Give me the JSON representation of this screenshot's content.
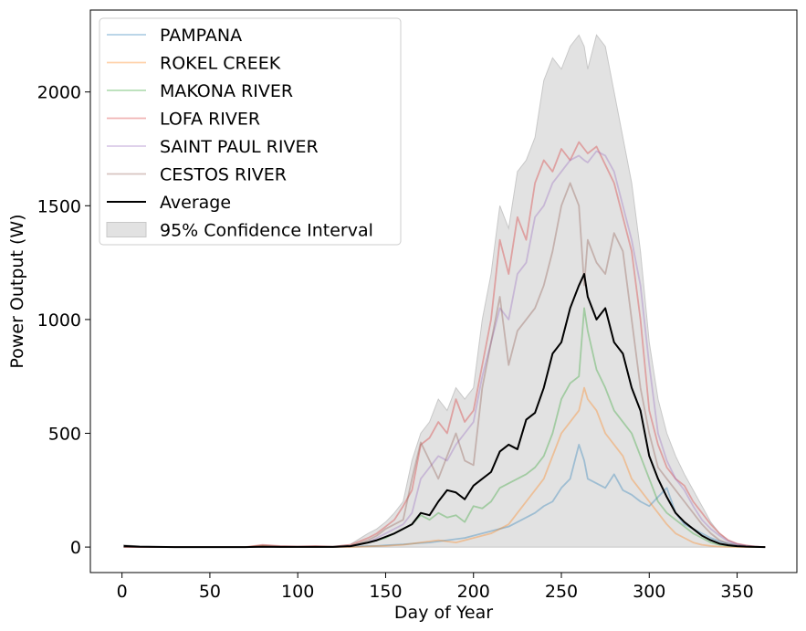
{
  "chart_data": {
    "type": "line",
    "title": "",
    "xlabel": "Day of Year",
    "ylabel": "Power Output (W)",
    "xlim": [
      -18,
      384
    ],
    "ylim": [
      -112,
      2360
    ],
    "xticks": [
      0,
      50,
      100,
      150,
      200,
      250,
      300,
      350
    ],
    "yticks": [
      0,
      500,
      1000,
      1500,
      2000
    ],
    "grid": false,
    "legend_position": "top-left",
    "x": [
      1,
      10,
      20,
      30,
      40,
      50,
      60,
      70,
      80,
      90,
      100,
      110,
      120,
      130,
      140,
      145,
      150,
      155,
      160,
      165,
      170,
      175,
      180,
      185,
      190,
      195,
      200,
      205,
      210,
      215,
      220,
      225,
      230,
      235,
      240,
      245,
      250,
      255,
      260,
      263,
      265,
      270,
      275,
      280,
      285,
      290,
      295,
      300,
      305,
      310,
      315,
      320,
      325,
      330,
      335,
      340,
      345,
      350,
      355,
      360,
      366
    ],
    "series": [
      {
        "name": "PAMPANA",
        "color": "#1f77b4",
        "opacity": 0.35,
        "values": [
          0,
          0,
          0,
          0,
          0,
          0,
          0,
          0,
          0,
          0,
          0,
          0,
          0,
          2,
          5,
          5,
          8,
          10,
          12,
          15,
          18,
          20,
          25,
          30,
          35,
          40,
          50,
          60,
          70,
          80,
          90,
          110,
          130,
          150,
          180,
          200,
          260,
          300,
          450,
          380,
          300,
          280,
          260,
          320,
          250,
          230,
          200,
          180,
          220,
          260,
          150,
          100,
          80,
          60,
          40,
          25,
          15,
          8,
          4,
          2,
          0
        ]
      },
      {
        "name": "ROKEL CREEK",
        "color": "#ff7f0e",
        "opacity": 0.35,
        "values": [
          0,
          0,
          0,
          0,
          0,
          0,
          0,
          0,
          5,
          0,
          0,
          0,
          0,
          0,
          3,
          5,
          5,
          8,
          10,
          15,
          20,
          25,
          30,
          25,
          20,
          30,
          40,
          50,
          60,
          80,
          100,
          150,
          200,
          250,
          300,
          400,
          500,
          550,
          600,
          700,
          650,
          600,
          500,
          450,
          400,
          300,
          250,
          200,
          150,
          100,
          60,
          40,
          20,
          10,
          5,
          2,
          1,
          0,
          0,
          0,
          0
        ]
      },
      {
        "name": "MAKONA RIVER",
        "color": "#2ca02c",
        "opacity": 0.35,
        "values": [
          0,
          0,
          0,
          0,
          0,
          0,
          0,
          0,
          0,
          0,
          0,
          0,
          0,
          5,
          20,
          30,
          40,
          60,
          80,
          100,
          140,
          120,
          150,
          130,
          140,
          110,
          180,
          170,
          200,
          260,
          280,
          300,
          320,
          350,
          400,
          500,
          650,
          720,
          750,
          1050,
          950,
          780,
          700,
          600,
          550,
          500,
          400,
          300,
          200,
          150,
          120,
          90,
          60,
          40,
          20,
          10,
          5,
          3,
          2,
          1,
          0
        ]
      },
      {
        "name": "LOFA RIVER",
        "color": "#d62728",
        "opacity": 0.35,
        "values": [
          0,
          0,
          0,
          0,
          0,
          0,
          0,
          0,
          10,
          5,
          3,
          5,
          2,
          10,
          40,
          60,
          90,
          120,
          180,
          250,
          450,
          480,
          550,
          500,
          650,
          550,
          600,
          800,
          1000,
          1350,
          1200,
          1450,
          1350,
          1600,
          1700,
          1650,
          1750,
          1700,
          1780,
          1750,
          1730,
          1760,
          1680,
          1600,
          1450,
          1300,
          1000,
          600,
          450,
          350,
          300,
          270,
          200,
          150,
          100,
          60,
          30,
          15,
          8,
          3,
          0
        ]
      },
      {
        "name": "SAINT PAUL RIVER",
        "color": "#9467bd",
        "opacity": 0.35,
        "values": [
          0,
          0,
          0,
          0,
          0,
          0,
          0,
          0,
          0,
          0,
          0,
          0,
          0,
          5,
          20,
          40,
          60,
          80,
          100,
          150,
          300,
          350,
          400,
          380,
          450,
          500,
          550,
          750,
          900,
          1050,
          1000,
          1200,
          1250,
          1450,
          1500,
          1600,
          1650,
          1700,
          1720,
          1700,
          1690,
          1740,
          1720,
          1650,
          1500,
          1350,
          1150,
          800,
          500,
          380,
          300,
          250,
          180,
          120,
          80,
          50,
          25,
          12,
          6,
          2,
          0
        ]
      },
      {
        "name": "CESTOS RIVER",
        "color": "#8c564b",
        "opacity": 0.35,
        "values": [
          0,
          0,
          0,
          0,
          0,
          0,
          0,
          0,
          0,
          0,
          0,
          0,
          0,
          5,
          30,
          50,
          80,
          100,
          120,
          300,
          460,
          380,
          300,
          400,
          500,
          380,
          360,
          700,
          900,
          1100,
          800,
          950,
          1000,
          1050,
          1150,
          1300,
          1500,
          1600,
          1500,
          1150,
          1350,
          1250,
          1200,
          1380,
          1300,
          1000,
          700,
          500,
          350,
          300,
          250,
          200,
          150,
          100,
          60,
          30,
          15,
          8,
          4,
          2,
          0
        ]
      },
      {
        "name": "Average",
        "color": "#000000",
        "opacity": 1.0,
        "values": [
          5,
          2,
          1,
          0,
          0,
          0,
          0,
          0,
          2,
          1,
          1,
          1,
          1,
          4,
          20,
          30,
          45,
          60,
          80,
          100,
          150,
          140,
          200,
          250,
          240,
          210,
          270,
          300,
          330,
          420,
          450,
          430,
          560,
          590,
          700,
          850,
          900,
          1050,
          1150,
          1200,
          1100,
          1000,
          1050,
          900,
          850,
          700,
          600,
          400,
          300,
          220,
          150,
          110,
          80,
          50,
          30,
          15,
          8,
          4,
          2,
          1,
          0
        ]
      }
    ],
    "confidence_interval": {
      "name": "95% Confidence Interval",
      "color": "#d3d3d3",
      "lower": [
        0,
        0,
        0,
        0,
        0,
        0,
        0,
        0,
        0,
        0,
        0,
        0,
        0,
        0,
        0,
        0,
        0,
        0,
        0,
        0,
        0,
        0,
        0,
        0,
        0,
        0,
        0,
        0,
        0,
        0,
        0,
        0,
        0,
        0,
        0,
        0,
        0,
        0,
        0,
        0,
        0,
        0,
        0,
        0,
        0,
        0,
        0,
        0,
        0,
        0,
        0,
        0,
        0,
        0,
        0,
        0,
        0,
        0,
        0,
        0,
        0
      ],
      "upper": [
        10,
        4,
        2,
        0,
        0,
        0,
        0,
        0,
        10,
        5,
        3,
        5,
        3,
        12,
        60,
        80,
        110,
        150,
        200,
        380,
        500,
        550,
        650,
        600,
        700,
        650,
        700,
        1000,
        1200,
        1500,
        1400,
        1650,
        1700,
        1800,
        2050,
        2150,
        2100,
        2200,
        2250,
        2200,
        2100,
        2250,
        2200,
        2000,
        1800,
        1600,
        1300,
        900,
        650,
        500,
        400,
        320,
        250,
        180,
        110,
        60,
        30,
        15,
        8,
        3,
        0
      ]
    }
  }
}
